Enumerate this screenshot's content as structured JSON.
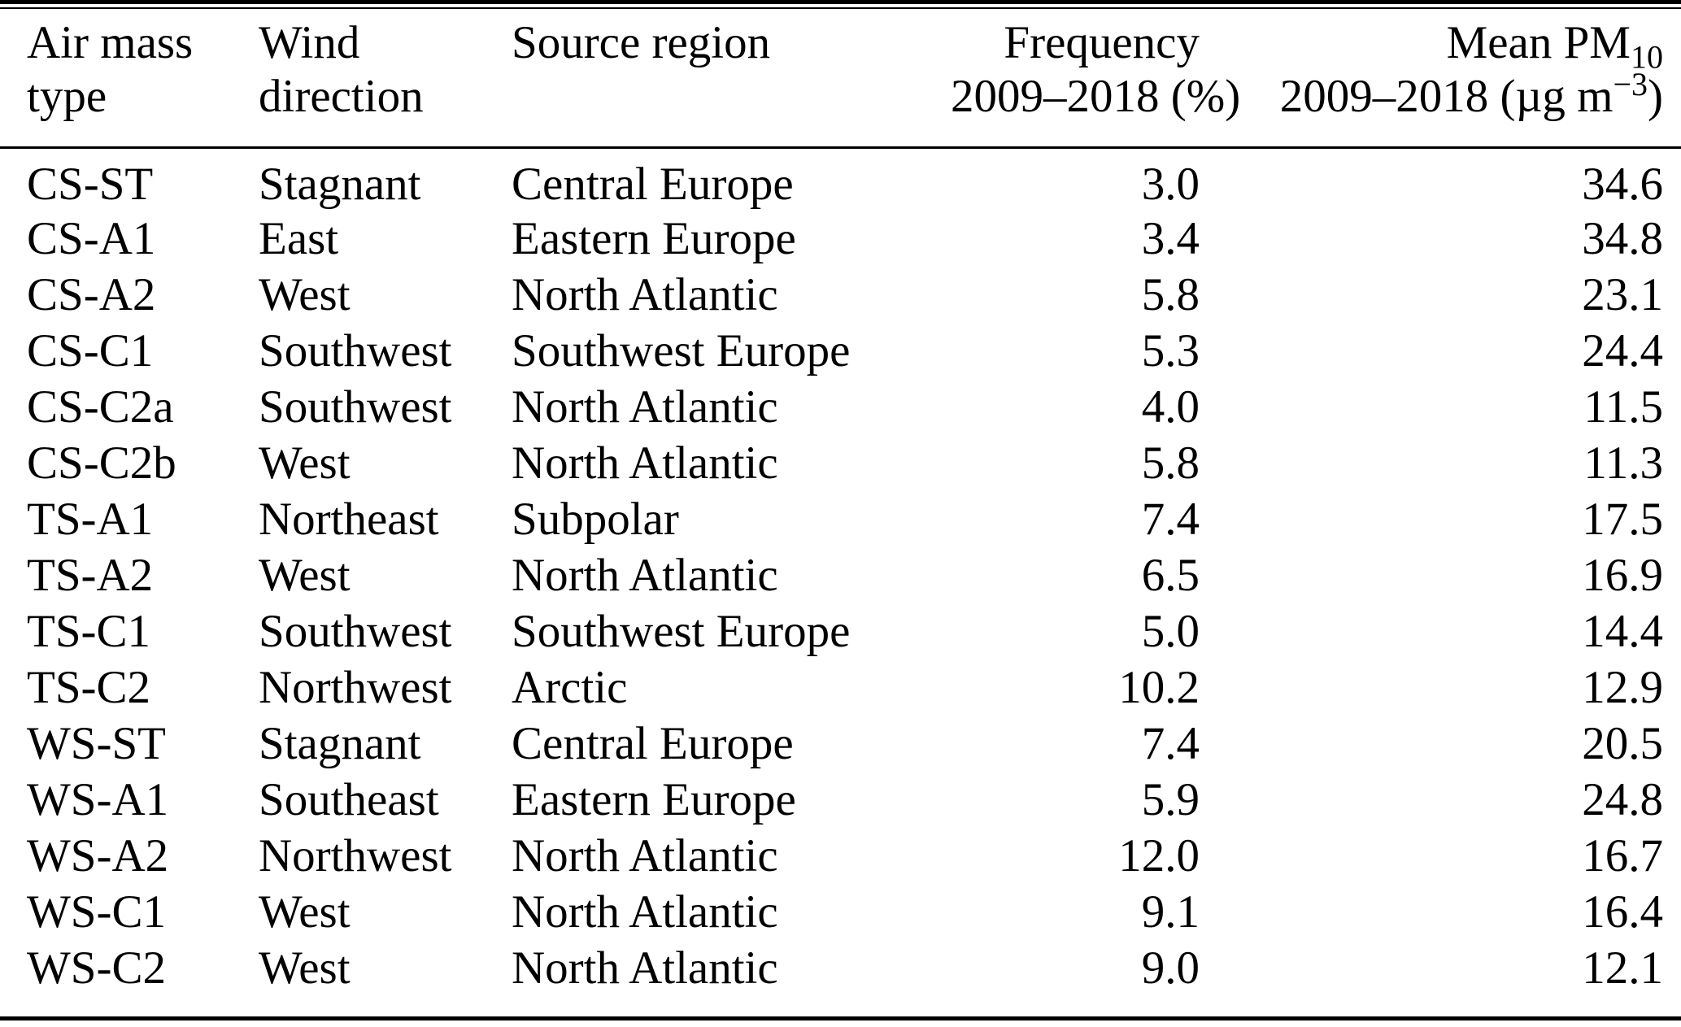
{
  "colors": {
    "background": "#ffffff",
    "text": "#000000",
    "rule": "#000000"
  },
  "table": {
    "header": {
      "air_mass_line1": "Air mass",
      "air_mass_line2": "type",
      "wind_line1": "Wind",
      "wind_line2": "direction",
      "source_region": "Source region",
      "frequency_line1": "Frequency",
      "frequency_line2": "2009–2018 (%)",
      "pm_line1_prefix": "Mean PM",
      "pm_line1_sub": "10",
      "pm_line2_prefix": "2009–2018 (µg m",
      "pm_line2_sup": "−3",
      "pm_line2_suffix": ")"
    },
    "rows": [
      {
        "type": "CS-ST",
        "wind": "Stagnant",
        "source": "Central Europe",
        "freq": "3.0",
        "pm": "34.6"
      },
      {
        "type": "CS-A1",
        "wind": "East",
        "source": "Eastern Europe",
        "freq": "3.4",
        "pm": "34.8"
      },
      {
        "type": "CS-A2",
        "wind": "West",
        "source": "North Atlantic",
        "freq": "5.8",
        "pm": "23.1"
      },
      {
        "type": "CS-C1",
        "wind": "Southwest",
        "source": "Southwest Europe",
        "freq": "5.3",
        "pm": "24.4"
      },
      {
        "type": "CS-C2a",
        "wind": "Southwest",
        "source": "North Atlantic",
        "freq": "4.0",
        "pm": "11.5"
      },
      {
        "type": "CS-C2b",
        "wind": "West",
        "source": "North Atlantic",
        "freq": "5.8",
        "pm": "11.3"
      },
      {
        "type": "TS-A1",
        "wind": "Northeast",
        "source": "Subpolar",
        "freq": "7.4",
        "pm": "17.5"
      },
      {
        "type": "TS-A2",
        "wind": "West",
        "source": "North Atlantic",
        "freq": "6.5",
        "pm": "16.9"
      },
      {
        "type": "TS-C1",
        "wind": "Southwest",
        "source": "Southwest Europe",
        "freq": "5.0",
        "pm": "14.4"
      },
      {
        "type": "TS-C2",
        "wind": "Northwest",
        "source": "Arctic",
        "freq": "10.2",
        "pm": "12.9"
      },
      {
        "type": "WS-ST",
        "wind": "Stagnant",
        "source": "Central Europe",
        "freq": "7.4",
        "pm": "20.5"
      },
      {
        "type": "WS-A1",
        "wind": "Southeast",
        "source": "Eastern Europe",
        "freq": "5.9",
        "pm": "24.8"
      },
      {
        "type": "WS-A2",
        "wind": "Northwest",
        "source": "North Atlantic",
        "freq": "12.0",
        "pm": "16.7"
      },
      {
        "type": "WS-C1",
        "wind": "West",
        "source": "North Atlantic",
        "freq": "9.1",
        "pm": "16.4"
      },
      {
        "type": "WS-C2",
        "wind": "West",
        "source": "North Atlantic",
        "freq": "9.0",
        "pm": "12.1"
      }
    ]
  }
}
